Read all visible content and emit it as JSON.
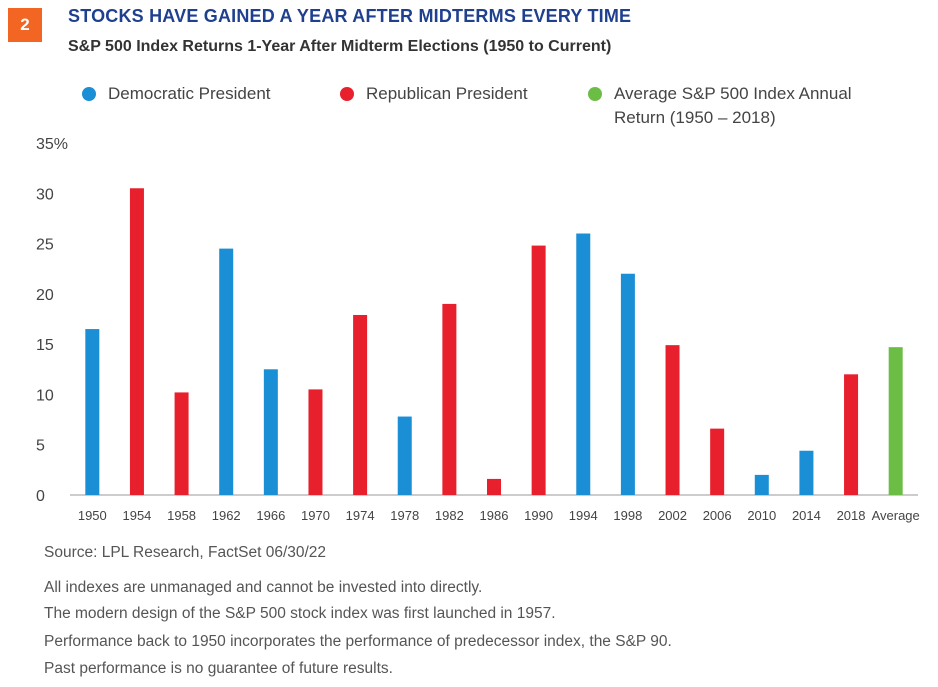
{
  "badge": "2",
  "title": "STOCKS HAVE GAINED A YEAR AFTER MIDTERMS EVERY TIME",
  "subtitle": "S&P 500 Index Returns 1-Year After Midterm Elections (1950 to Current)",
  "legend": {
    "democratic": "Democratic President",
    "republican": "Republican President",
    "average": "Average S&P 500 Index Annual\nReturn (1950 – 2018)"
  },
  "colors": {
    "democratic": "#1a8fd6",
    "republican": "#e8202e",
    "average": "#6cbd45"
  },
  "chart_data": {
    "type": "bar",
    "title": "STOCKS HAVE GAINED A YEAR AFTER MIDTERMS EVERY TIME",
    "subtitle": "S&P 500 Index Returns 1-Year After Midterm Elections (1950 to Current)",
    "ylim": [
      0,
      35
    ],
    "yticks": [
      "0",
      "5",
      "10",
      "15",
      "20",
      "25",
      "30",
      "35%"
    ],
    "categories": [
      "1950",
      "1954",
      "1958",
      "1962",
      "1966",
      "1970",
      "1974",
      "1978",
      "1982",
      "1986",
      "1990",
      "1994",
      "1998",
      "2002",
      "2006",
      "2010",
      "2014",
      "2018",
      "Average"
    ],
    "values": [
      16.5,
      30.5,
      10.2,
      24.5,
      12.5,
      10.5,
      17.9,
      7.8,
      19.0,
      1.6,
      24.8,
      26.0,
      22.0,
      14.9,
      6.6,
      2.0,
      4.4,
      12.0,
      14.7
    ],
    "groups": [
      "democratic",
      "republican",
      "republican",
      "democratic",
      "democratic",
      "republican",
      "republican",
      "democratic",
      "republican",
      "republican",
      "republican",
      "democratic",
      "democratic",
      "republican",
      "republican",
      "democratic",
      "democratic",
      "republican",
      "average"
    ],
    "grid": false
  },
  "footer": {
    "source": "Source: LPL Research, FactSet  06/30/22",
    "notes": [
      "All indexes are unmanaged and cannot be invested into directly.",
      "The modern design of the S&P 500 stock index was first launched in 1957.",
      "Performance back to 1950 incorporates the performance of predecessor index, the S&P 90.",
      "Past performance is no guarantee of future results."
    ]
  }
}
